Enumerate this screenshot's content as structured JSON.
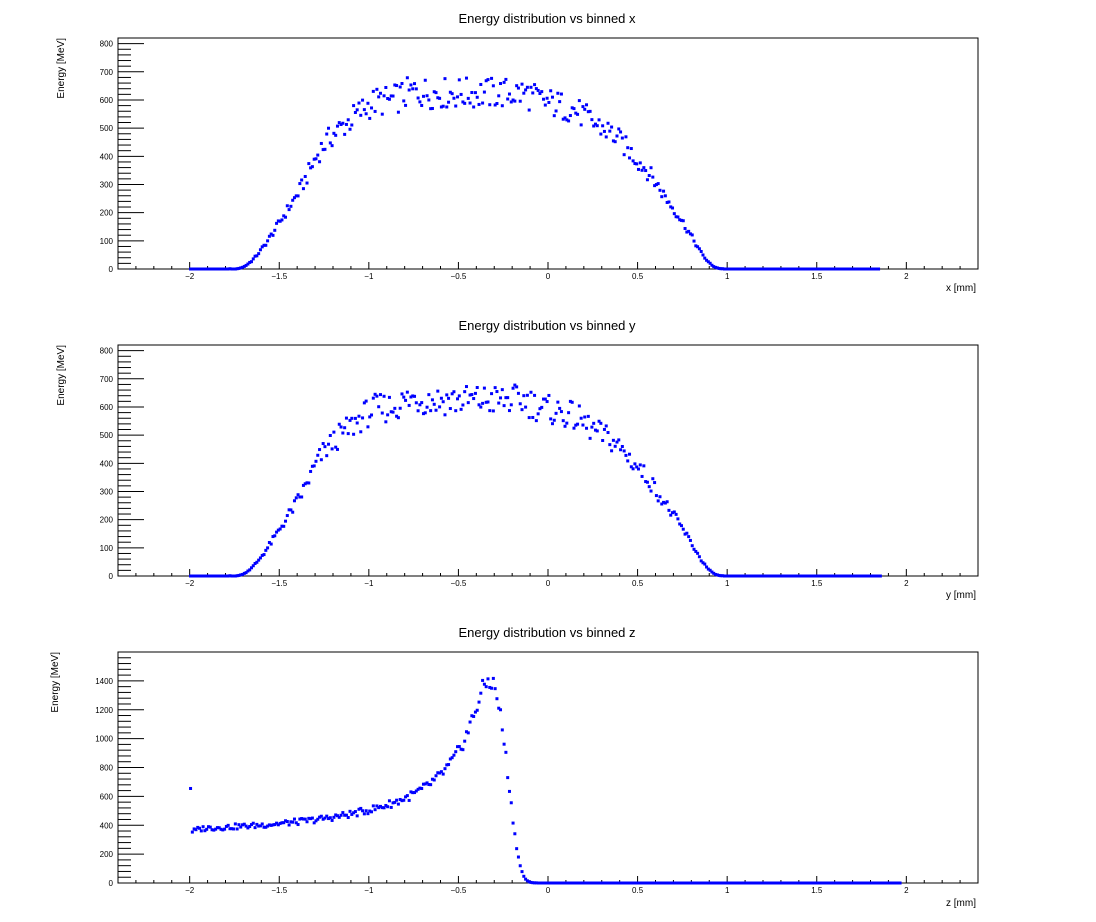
{
  "chart_data": [
    {
      "type": "scatter",
      "title": "Energy distribution vs binned x",
      "xlabel": "x [mm]",
      "ylabel": "Energy [MeV]",
      "xlim": [
        -2.4,
        2.4
      ],
      "ylim": [
        0,
        820
      ],
      "x_ticks": [
        -2,
        -1.5,
        -1,
        -0.5,
        0,
        0.5,
        1,
        1.5,
        2
      ],
      "x_tick_labels": [
        "−2",
        "−1.5",
        "−1",
        "−0.5",
        "0",
        "0.5",
        "1",
        "1.5",
        "2"
      ],
      "y_ticks": [
        0,
        100,
        200,
        300,
        400,
        500,
        600,
        700,
        800
      ],
      "y_tick_labels": [
        "0",
        "100",
        "200",
        "300",
        "400",
        "500",
        "600",
        "700",
        "800"
      ],
      "grid": false,
      "marker_color": "#0000ff",
      "bin_width": 0.01,
      "x_start": -1.995,
      "values": [
        0,
        0,
        0,
        0,
        0,
        0,
        0,
        0,
        0,
        0,
        0,
        0,
        0,
        0,
        0,
        0,
        0,
        0,
        0,
        0,
        0,
        0,
        1,
        0,
        0,
        0,
        1,
        2,
        4,
        6,
        9,
        13,
        18,
        23,
        28,
        35,
        42,
        49,
        57,
        65,
        74,
        82,
        91,
        100,
        110,
        119,
        129,
        139,
        149,
        159,
        170,
        179,
        189,
        199,
        209,
        219,
        229,
        239,
        249,
        259,
        270,
        281,
        292,
        305,
        317,
        330,
        344,
        357,
        370,
        383,
        395,
        407,
        418,
        428,
        437,
        446,
        453,
        460,
        467,
        473,
        479,
        485,
        491,
        496,
        502,
        507,
        512,
        517,
        522,
        527,
        533,
        538,
        544,
        549,
        555,
        560,
        565,
        570,
        575,
        579,
        583,
        587,
        590,
        592,
        594,
        595,
        596,
        596,
        596,
        597,
        597,
        598,
        600,
        601,
        603,
        606,
        608,
        611,
        614,
        617,
        620,
        623,
        625,
        627,
        628,
        629,
        629,
        629,
        628,
        627,
        626,
        626,
        625,
        624,
        624,
        624,
        624,
        624,
        624,
        624,
        624,
        624,
        624,
        624,
        624,
        624,
        624,
        624,
        624,
        624,
        624,
        624,
        624,
        624,
        624,
        624,
        624,
        624,
        624,
        624,
        624,
        624,
        624,
        624,
        624,
        624,
        624,
        624,
        624,
        624,
        624,
        624,
        624,
        624,
        624,
        624,
        624,
        624,
        624,
        624,
        624,
        624,
        624,
        624,
        624,
        624,
        623,
        622,
        620,
        617,
        614,
        611,
        607,
        604,
        602,
        599,
        597,
        595,
        593,
        592,
        590,
        589,
        587,
        586,
        584,
        582,
        580,
        578,
        576,
        575,
        574,
        572,
        570,
        568,
        565,
        562,
        558,
        554,
        550,
        545,
        541,
        536,
        531,
        527,
        522,
        518,
        514,
        510,
        507,
        504,
        500,
        497,
        494,
        490,
        486,
        481,
        476,
        471,
        465,
        459,
        453,
        446,
        439,
        432,
        425,
        418,
        411,
        404,
        397,
        390,
        383,
        376,
        369,
        362,
        355,
        348,
        340,
        331,
        322,
        313,
        303,
        293,
        284,
        274,
        265,
        255,
        246,
        237,
        228,
        219,
        210,
        201,
        192,
        182,
        173,
        163,
        153,
        143,
        132,
        122,
        111,
        100,
        89,
        78,
        68,
        58,
        49,
        40,
        32,
        25,
        19,
        13,
        9,
        6,
        4,
        2,
        1,
        1,
        0,
        0,
        0,
        0,
        0,
        0,
        0,
        0,
        0,
        0,
        0,
        0,
        0,
        0,
        0,
        0,
        0,
        0,
        0,
        0,
        0,
        0,
        0,
        0,
        0,
        0,
        0,
        0,
        0,
        0,
        0,
        0,
        0,
        0,
        0,
        0,
        0,
        0,
        0,
        0,
        0,
        0,
        0,
        0,
        0,
        0,
        0,
        0,
        0,
        0,
        0,
        0,
        0,
        0,
        0,
        0,
        0,
        0,
        0,
        0,
        0,
        0,
        0,
        0,
        0,
        0,
        0,
        0,
        0,
        0,
        0,
        0,
        0,
        0,
        0,
        0,
        0,
        0,
        0,
        0,
        0,
        0,
        0,
        0,
        0,
        0,
        0
      ]
    },
    {
      "type": "scatter",
      "title": "Energy distribution vs binned y",
      "xlabel": "y [mm]",
      "ylabel": "Energy [MeV]",
      "xlim": [
        -2.4,
        2.4
      ],
      "ylim": [
        0,
        820
      ],
      "x_ticks": [
        -2,
        -1.5,
        -1,
        -0.5,
        0,
        0.5,
        1,
        1.5,
        2
      ],
      "x_tick_labels": [
        "−2",
        "−1.5",
        "−1",
        "−0.5",
        "0",
        "0.5",
        "1",
        "1.5",
        "2"
      ],
      "y_ticks": [
        0,
        100,
        200,
        300,
        400,
        500,
        600,
        700,
        800
      ],
      "y_tick_labels": [
        "0",
        "100",
        "200",
        "300",
        "400",
        "500",
        "600",
        "700",
        "800"
      ],
      "grid": false,
      "marker_color": "#0000ff",
      "bin_width": 0.01,
      "x_start": -1.995,
      "values": [
        0,
        0,
        0,
        0,
        0,
        0,
        0,
        0,
        0,
        0,
        0,
        0,
        0,
        0,
        0,
        0,
        0,
        0,
        0,
        0,
        0,
        0,
        1,
        0,
        0,
        0,
        1,
        2,
        4,
        6,
        9,
        13,
        18,
        23,
        28,
        35,
        42,
        49,
        57,
        65,
        74,
        82,
        91,
        100,
        110,
        119,
        129,
        139,
        149,
        159,
        170,
        179,
        189,
        199,
        209,
        219,
        229,
        239,
        249,
        259,
        270,
        281,
        292,
        305,
        317,
        330,
        344,
        357,
        370,
        383,
        395,
        407,
        418,
        428,
        437,
        446,
        453,
        460,
        467,
        473,
        479,
        485,
        491,
        496,
        502,
        507,
        512,
        517,
        522,
        527,
        533,
        538,
        544,
        549,
        555,
        560,
        565,
        570,
        575,
        579,
        583,
        587,
        590,
        592,
        594,
        595,
        596,
        596,
        596,
        597,
        597,
        598,
        600,
        601,
        603,
        606,
        608,
        611,
        614,
        617,
        620,
        623,
        625,
        627,
        628,
        629,
        629,
        629,
        628,
        627,
        626,
        626,
        625,
        624,
        624,
        624,
        624,
        624,
        624,
        624,
        624,
        624,
        624,
        624,
        624,
        624,
        624,
        624,
        624,
        624,
        624,
        624,
        624,
        624,
        624,
        624,
        624,
        624,
        624,
        624,
        624,
        624,
        624,
        624,
        624,
        624,
        624,
        624,
        624,
        624,
        624,
        624,
        624,
        624,
        624,
        624,
        624,
        624,
        624,
        624,
        624,
        624,
        624,
        624,
        624,
        624,
        623,
        622,
        620,
        617,
        614,
        611,
        607,
        604,
        602,
        599,
        597,
        595,
        593,
        592,
        590,
        589,
        587,
        586,
        584,
        582,
        580,
        578,
        576,
        575,
        574,
        572,
        570,
        568,
        565,
        562,
        558,
        554,
        550,
        545,
        541,
        536,
        531,
        527,
        522,
        518,
        514,
        510,
        507,
        504,
        500,
        497,
        494,
        490,
        486,
        481,
        476,
        471,
        465,
        459,
        453,
        446,
        439,
        432,
        425,
        418,
        411,
        404,
        397,
        390,
        383,
        376,
        369,
        362,
        355,
        348,
        340,
        331,
        322,
        313,
        303,
        293,
        284,
        274,
        265,
        255,
        246,
        237,
        228,
        219,
        210,
        201,
        192,
        182,
        173,
        163,
        153,
        143,
        132,
        122,
        111,
        100,
        89,
        78,
        68,
        58,
        49,
        40,
        32,
        25,
        19,
        13,
        9,
        6,
        4,
        2,
        1,
        1,
        0,
        0,
        0,
        0,
        0,
        0,
        0,
        0,
        0,
        0,
        0,
        0,
        0,
        0,
        0,
        0,
        0,
        0,
        0,
        0,
        0,
        0,
        0,
        0,
        0,
        0,
        0,
        0,
        0,
        0,
        0,
        0,
        0,
        0,
        0,
        0,
        0,
        0,
        0,
        0,
        0,
        0,
        0,
        0,
        0,
        0,
        0,
        0,
        0,
        0,
        0,
        0,
        0,
        0,
        0,
        0,
        0,
        0,
        0,
        0,
        0,
        0,
        0,
        0,
        0,
        0,
        0,
        0,
        0,
        0,
        0,
        0,
        0,
        0,
        0,
        0,
        0,
        0,
        0,
        0,
        0,
        0,
        0,
        0,
        0,
        0,
        0,
        0
      ]
    },
    {
      "type": "scatter",
      "title": "Energy distribution vs binned z",
      "xlabel": "z [mm]",
      "ylabel": "Energy [MeV]",
      "xlim": [
        -2.4,
        2.4
      ],
      "ylim": [
        0,
        1600
      ],
      "x_ticks": [
        -2,
        -1.5,
        -1,
        -0.5,
        0,
        0.5,
        1,
        1.5,
        2
      ],
      "x_tick_labels": [
        "−2",
        "−1.5",
        "−1",
        "−0.5",
        "0",
        "0.5",
        "1",
        "1.5",
        "2"
      ],
      "y_ticks": [
        0,
        200,
        400,
        600,
        800,
        1000,
        1200,
        1400
      ],
      "y_tick_labels": [
        "0",
        "200",
        "400",
        "600",
        "800",
        "1000",
        "1200",
        "1400"
      ],
      "grid": false,
      "marker_color": "#0000ff",
      "bin_width": 0.01,
      "x_start": -1.995,
      "values": [
        660,
        360,
        360,
        365,
        370,
        372,
        375,
        377,
        379,
        380,
        381,
        382,
        383,
        383,
        384,
        384,
        385,
        385,
        386,
        387,
        387,
        388,
        388,
        389,
        390,
        390,
        391,
        392,
        392,
        393,
        394,
        394,
        395,
        396,
        397,
        397,
        398,
        399,
        400,
        401,
        402,
        403,
        404,
        405,
        406,
        407,
        408,
        409,
        410,
        411,
        412,
        413,
        414,
        416,
        417,
        418,
        419,
        420,
        422,
        423,
        424,
        426,
        427,
        428,
        430,
        431,
        433,
        434,
        436,
        437,
        439,
        441,
        442,
        444,
        446,
        448,
        450,
        451,
        453,
        455,
        457,
        459,
        461,
        463,
        465,
        468,
        470,
        472,
        474,
        477,
        479,
        482,
        484,
        487,
        490,
        492,
        495,
        498,
        501,
        504,
        507,
        510,
        513,
        516,
        520,
        523,
        527,
        530,
        534,
        538,
        542,
        546,
        550,
        554,
        559,
        563,
        568,
        573,
        578,
        583,
        589,
        594,
        600,
        606,
        612,
        619,
        625,
        632,
        640,
        647,
        655,
        663,
        672,
        681,
        690,
        700,
        710,
        720,
        731,
        743,
        755,
        768,
        781,
        795,
        810,
        826,
        843,
        861,
        880,
        900,
        922,
        945,
        970,
        997,
        1026,
        1057,
        1090,
        1125,
        1161,
        1198,
        1235,
        1271,
        1306,
        1337,
        1364,
        1384,
        1396,
        1399,
        1391,
        1371,
        1338,
        1291,
        1231,
        1157,
        1072,
        976,
        872,
        762,
        650,
        540,
        434,
        336,
        250,
        178,
        120,
        77,
        47,
        27,
        15,
        8,
        4,
        2,
        1,
        1,
        0,
        0,
        0,
        0,
        0,
        0,
        0,
        0,
        0,
        0,
        0,
        0,
        0,
        0,
        0,
        0,
        0,
        0,
        0,
        0,
        0,
        0,
        0,
        0,
        0,
        0,
        0,
        0,
        0,
        0,
        0,
        0,
        0,
        0,
        0,
        0,
        0,
        0,
        0,
        0,
        0,
        0,
        0,
        0,
        0,
        0,
        0,
        0,
        0,
        0,
        0,
        0,
        0,
        0,
        0,
        0,
        0,
        0,
        0,
        0,
        0,
        0,
        0,
        0,
        0,
        0,
        0,
        0,
        0,
        0,
        0,
        0,
        0,
        0,
        0,
        0,
        0,
        0,
        0,
        0,
        0,
        0,
        0,
        0,
        0,
        0,
        0,
        0,
        0,
        0,
        0,
        0,
        0,
        0,
        0,
        0,
        0,
        0,
        0,
        0,
        0,
        0,
        0,
        0,
        0,
        0,
        0,
        0,
        0,
        0,
        0,
        0,
        0,
        0,
        0,
        0,
        0,
        0,
        0,
        0,
        0,
        0,
        0,
        0,
        0,
        0,
        0,
        0,
        0,
        0,
        0,
        0,
        0,
        0,
        0,
        0,
        0,
        0,
        0,
        0,
        0,
        0,
        0,
        0,
        0,
        0,
        0,
        0,
        0,
        0,
        0,
        0,
        0,
        0,
        0,
        0,
        0,
        0,
        0,
        0,
        0,
        0,
        0,
        0,
        0,
        0,
        0,
        0,
        0,
        0,
        0,
        0,
        0,
        0,
        0,
        0,
        0,
        0,
        0,
        0,
        0,
        0,
        0,
        0,
        0,
        0,
        0,
        0,
        0,
        0,
        0,
        0,
        0,
        0,
        0,
        0,
        0,
        0,
        0,
        0,
        0,
        0,
        0
      ]
    }
  ]
}
